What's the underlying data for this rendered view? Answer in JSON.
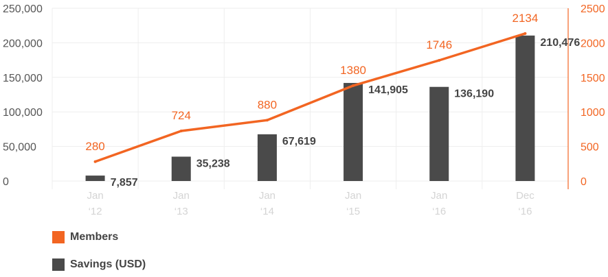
{
  "chart_data": {
    "type": "bar+line",
    "categories": [
      {
        "month": "Jan",
        "year": "‘12"
      },
      {
        "month": "Jan",
        "year": "‘13"
      },
      {
        "month": "Jan",
        "year": "‘14"
      },
      {
        "month": "Jan",
        "year": "‘15"
      },
      {
        "month": "Jan",
        "year": "‘16"
      },
      {
        "month": "Dec",
        "year": "‘16"
      }
    ],
    "series": [
      {
        "name": "Savings (USD)",
        "type": "bar",
        "axis": "left",
        "color": "#4a4a4a",
        "values": [
          7857,
          35238,
          67619,
          141905,
          136190,
          210476
        ],
        "labels": [
          "7,857",
          "35,238",
          "67,619",
          "141,905",
          "136,190",
          "210,476"
        ]
      },
      {
        "name": "Members",
        "type": "line",
        "axis": "right",
        "color": "#f26522",
        "values": [
          280,
          724,
          880,
          1380,
          1746,
          2134
        ],
        "labels": [
          "280",
          "724",
          "880",
          "1380",
          "1746",
          "2134"
        ]
      }
    ],
    "y_left": {
      "min": 0,
      "max": 250000,
      "ticks": [
        0,
        50000,
        100000,
        150000,
        200000,
        250000
      ],
      "tick_labels": [
        "0",
        "50,000",
        "100,000",
        "150,000",
        "200,000",
        "250,000"
      ]
    },
    "y_right": {
      "min": 0,
      "max": 2500,
      "ticks": [
        0,
        500,
        1000,
        1500,
        2000,
        2500
      ],
      "tick_labels": [
        "0",
        "500",
        "1000",
        "1500",
        "2000",
        "2500"
      ],
      "color": "#f26522"
    },
    "grid": true,
    "legend": [
      {
        "name": "Members",
        "color": "#f26522"
      },
      {
        "name": "Savings (USD)",
        "color": "#4a4a4a"
      }
    ],
    "legend_position": "bottom-left"
  }
}
